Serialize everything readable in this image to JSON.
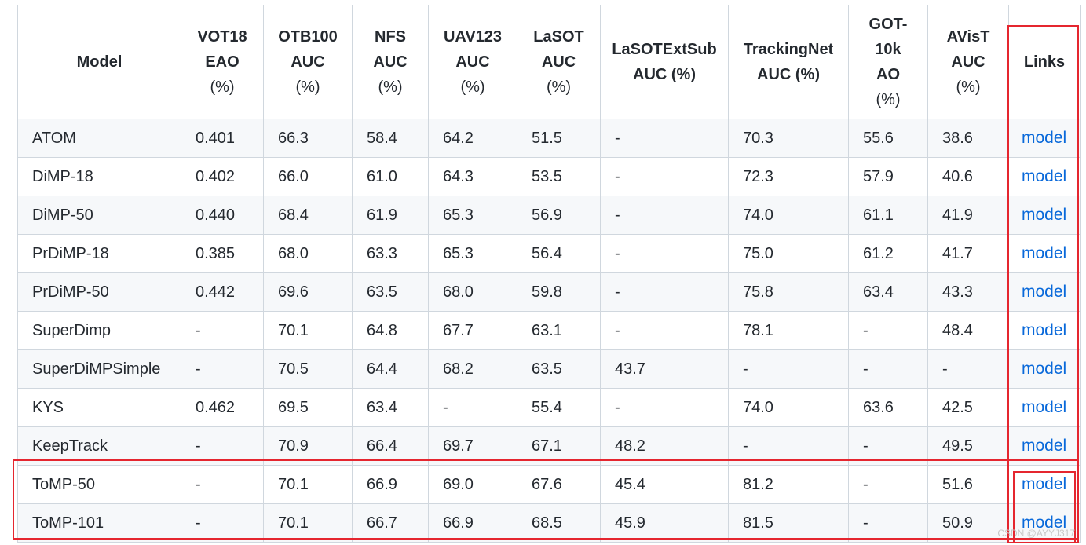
{
  "table": {
    "headers": [
      {
        "lines": [
          "Model"
        ],
        "pct": ""
      },
      {
        "lines": [
          "VOT18",
          "EAO"
        ],
        "pct": "(%)"
      },
      {
        "lines": [
          "OTB100",
          "AUC"
        ],
        "pct": "(%)"
      },
      {
        "lines": [
          "NFS",
          "AUC"
        ],
        "pct": "(%)"
      },
      {
        "lines": [
          "UAV123",
          "AUC"
        ],
        "pct": "(%)"
      },
      {
        "lines": [
          "LaSOT",
          "AUC"
        ],
        "pct": "(%)"
      },
      {
        "lines": [
          "LaSOTExtSub",
          "AUC (%)"
        ],
        "pct": ""
      },
      {
        "lines": [
          "TrackingNet",
          "AUC (%)"
        ],
        "pct": ""
      },
      {
        "lines": [
          "GOT-",
          "10k",
          "AO"
        ],
        "pct": "(%)"
      },
      {
        "lines": [
          "AVisT",
          "AUC"
        ],
        "pct": "(%)"
      },
      {
        "lines": [
          "Links"
        ],
        "pct": ""
      }
    ],
    "rows": [
      [
        "ATOM",
        "0.401",
        "66.3",
        "58.4",
        "64.2",
        "51.5",
        "-",
        "70.3",
        "55.6",
        "38.6",
        "model"
      ],
      [
        "DiMP-18",
        "0.402",
        "66.0",
        "61.0",
        "64.3",
        "53.5",
        "-",
        "72.3",
        "57.9",
        "40.6",
        "model"
      ],
      [
        "DiMP-50",
        "0.440",
        "68.4",
        "61.9",
        "65.3",
        "56.9",
        "-",
        "74.0",
        "61.1",
        "41.9",
        "model"
      ],
      [
        "PrDiMP-18",
        "0.385",
        "68.0",
        "63.3",
        "65.3",
        "56.4",
        "-",
        "75.0",
        "61.2",
        "41.7",
        "model"
      ],
      [
        "PrDiMP-50",
        "0.442",
        "69.6",
        "63.5",
        "68.0",
        "59.8",
        "-",
        "75.8",
        "63.4",
        "43.3",
        "model"
      ],
      [
        "SuperDimp",
        "-",
        "70.1",
        "64.8",
        "67.7",
        "63.1",
        "-",
        "78.1",
        "-",
        "48.4",
        "model"
      ],
      [
        "SuperDiMPSimple",
        "-",
        "70.5",
        "64.4",
        "68.2",
        "63.5",
        "43.7",
        "-",
        "-",
        "-",
        "model"
      ],
      [
        "KYS",
        "0.462",
        "69.5",
        "63.4",
        "-",
        "55.4",
        "-",
        "74.0",
        "63.6",
        "42.5",
        "model"
      ],
      [
        "KeepTrack",
        "-",
        "70.9",
        "66.4",
        "69.7",
        "67.1",
        "48.2",
        "-",
        "-",
        "49.5",
        "model"
      ],
      [
        "ToMP-50",
        "-",
        "70.1",
        "66.9",
        "69.0",
        "67.6",
        "45.4",
        "81.2",
        "-",
        "51.6",
        "model"
      ],
      [
        "ToMP-101",
        "-",
        "70.1",
        "66.7",
        "66.9",
        "68.5",
        "45.9",
        "81.5",
        "-",
        "50.9",
        "model"
      ]
    ]
  },
  "watermark": "CSDN @AYYJ317",
  "colors": {
    "link": "#0969da",
    "highlight": "#e5262f",
    "stripe": "#f6f8fa",
    "border": "#d0d7de"
  }
}
